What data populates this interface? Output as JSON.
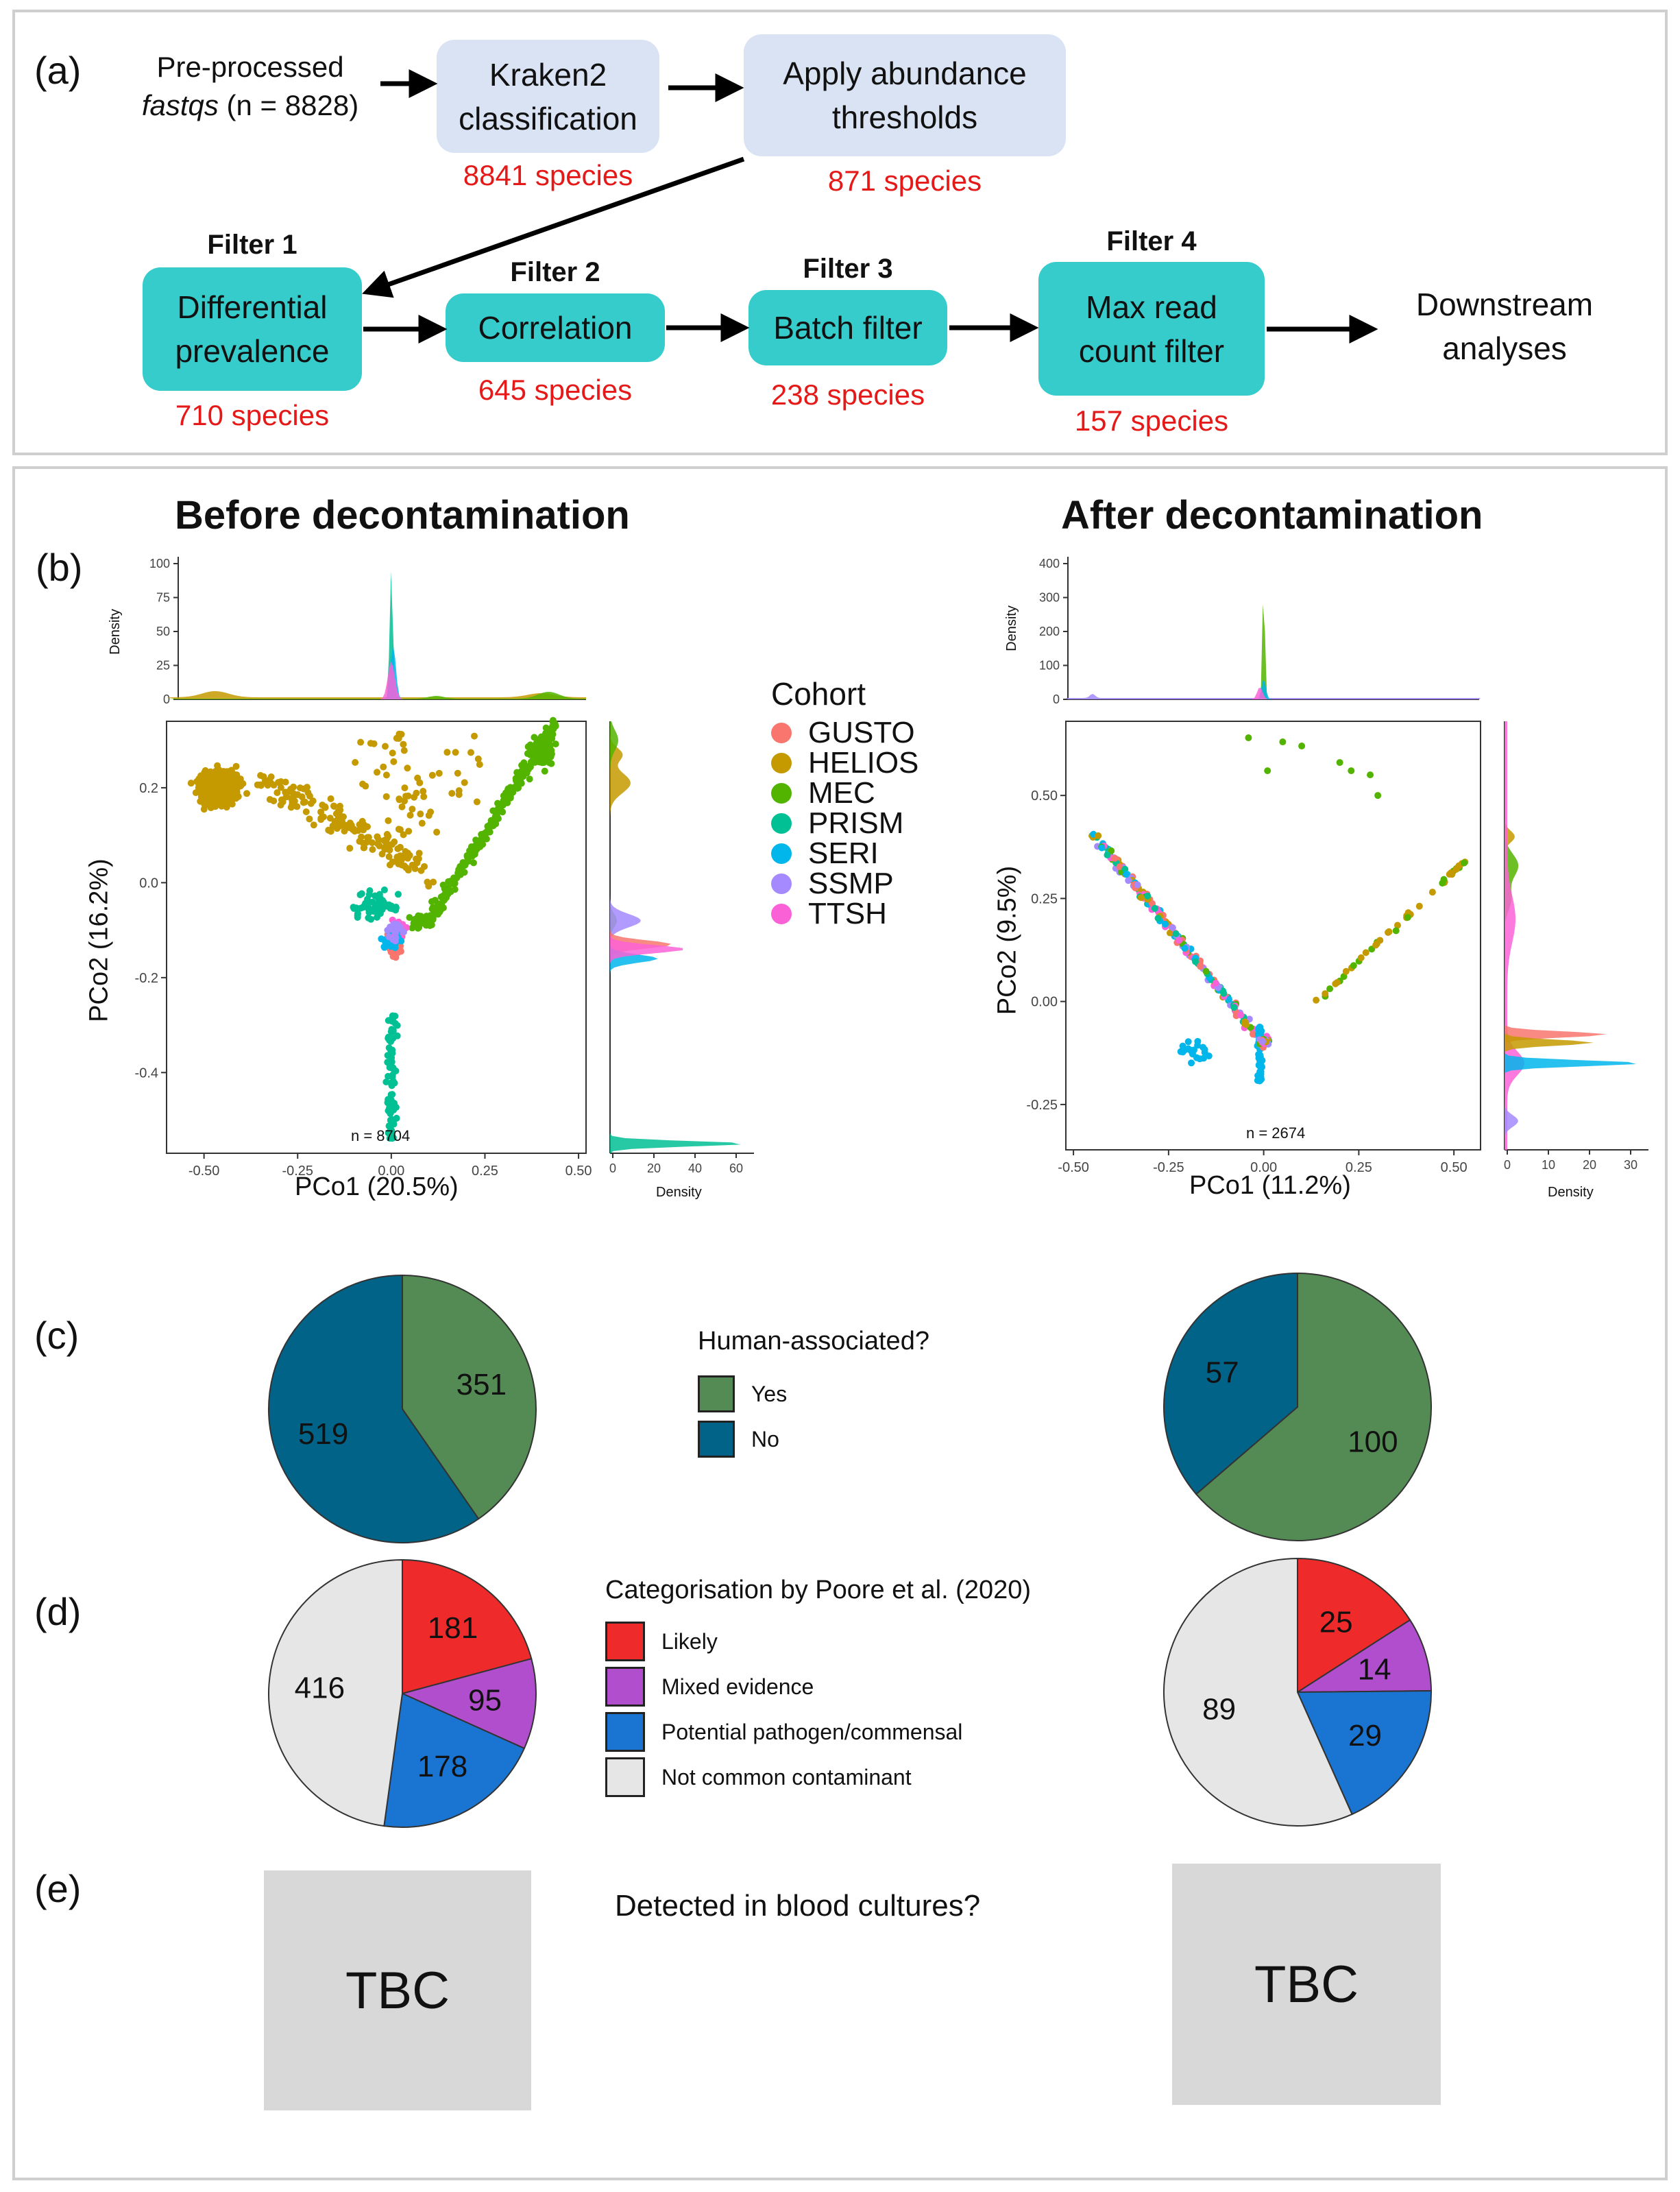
{
  "panel_a": {
    "label": "(a)",
    "input_line1": "Pre-processed",
    "input_line2_italic": "fastqs",
    "input_line2_rest": " (n = 8828)",
    "steps": [
      {
        "name": "Kraken2 classification",
        "line1": "Kraken2",
        "line2": "classification",
        "count": "8841 species"
      },
      {
        "name": "Apply abundance thresholds",
        "line1": "Apply abundance",
        "line2": "thresholds",
        "count": "871 species"
      },
      {
        "filter": "Filter 1",
        "line1": "Differential",
        "line2": "prevalence",
        "count": "710 species"
      },
      {
        "filter": "Filter 2",
        "line1": "Correlation",
        "line2": "",
        "count": "645 species"
      },
      {
        "filter": "Filter 3",
        "line1": "Batch filter",
        "line2": "",
        "count": "238 species"
      },
      {
        "filter": "Filter 4",
        "line1": "Max read",
        "line2": "count filter",
        "count": "157 species"
      }
    ],
    "output_line1": "Downstream",
    "output_line2": "analyses"
  },
  "panel_b": {
    "label": "(b)",
    "title_before": "Before decontamination",
    "title_after": "After decontamination",
    "density_label": "Density",
    "legend_title": "Cohort",
    "cohorts": [
      {
        "name": "GUSTO",
        "color": "#f8766d"
      },
      {
        "name": "HELIOS",
        "color": "#c49a00"
      },
      {
        "name": "MEC",
        "color": "#53b400"
      },
      {
        "name": "PRISM",
        "color": "#00c094"
      },
      {
        "name": "SERI",
        "color": "#00b6eb"
      },
      {
        "name": "SSMP",
        "color": "#a58aff"
      },
      {
        "name": "TTSH",
        "color": "#fb61d7"
      }
    ],
    "before": {
      "xlabel": "PCo1 (20.5%)",
      "ylabel": "PCo2 (16.2%)",
      "n_label": "n = 8704",
      "xticks": [
        "-0.50",
        "-0.25",
        "0.00",
        "0.25",
        "0.50"
      ],
      "yticks": [
        "0.2",
        "0.0",
        "-0.2",
        "-0.4"
      ],
      "top_density_ticks": [
        "100",
        "75",
        "50",
        "25",
        "0"
      ],
      "side_density_ticks": [
        "0",
        "20",
        "40",
        "60"
      ]
    },
    "after": {
      "xlabel": "PCo1 (11.2%)",
      "ylabel": "PCo2 (9.5%)",
      "n_label": "n = 2674",
      "xticks": [
        "-0.50",
        "-0.25",
        "0.00",
        "0.25",
        "0.50"
      ],
      "yticks": [
        "0.50",
        "0.25",
        "0.00",
        "-0.25"
      ],
      "top_density_ticks": [
        "400",
        "300",
        "200",
        "100",
        "0"
      ],
      "side_density_ticks": [
        "0",
        "10",
        "20",
        "30"
      ]
    }
  },
  "panel_c": {
    "label": "(c)",
    "legend_title": "Human-associated?",
    "legend": [
      {
        "name": "Yes",
        "color": "#548b54"
      },
      {
        "name": "No",
        "color": "#006387"
      }
    ]
  },
  "panel_d": {
    "label": "(d)",
    "legend_title": "Categorisation by Poore et al. (2020)",
    "legend": [
      {
        "name": "Likely",
        "color": "#ee2a2a"
      },
      {
        "name": "Mixed evidence",
        "color": "#b04ece"
      },
      {
        "name": "Potential pathogen/commensal",
        "color": "#1a74d2"
      },
      {
        "name": "Not common contaminant",
        "color": "#e6e6e6"
      }
    ]
  },
  "panel_e": {
    "label": "(e)",
    "question": "Detected in blood cultures?",
    "left_box": "TBC",
    "right_box": "TBC"
  },
  "chart_data": [
    {
      "type": "pie",
      "id": "c-before",
      "categories": [
        "Yes",
        "No"
      ],
      "values": [
        351,
        519
      ]
    },
    {
      "type": "pie",
      "id": "c-after",
      "categories": [
        "Yes",
        "No"
      ],
      "values": [
        100,
        57
      ]
    },
    {
      "type": "pie",
      "id": "d-before",
      "categories": [
        "Likely",
        "Mixed evidence",
        "Potential pathogen/commensal",
        "Not common contaminant"
      ],
      "values": [
        181,
        95,
        178,
        416
      ]
    },
    {
      "type": "pie",
      "id": "d-after",
      "categories": [
        "Likely",
        "Mixed evidence",
        "Potential pathogen/commensal",
        "Not common contaminant"
      ],
      "values": [
        25,
        14,
        29,
        89
      ]
    }
  ]
}
